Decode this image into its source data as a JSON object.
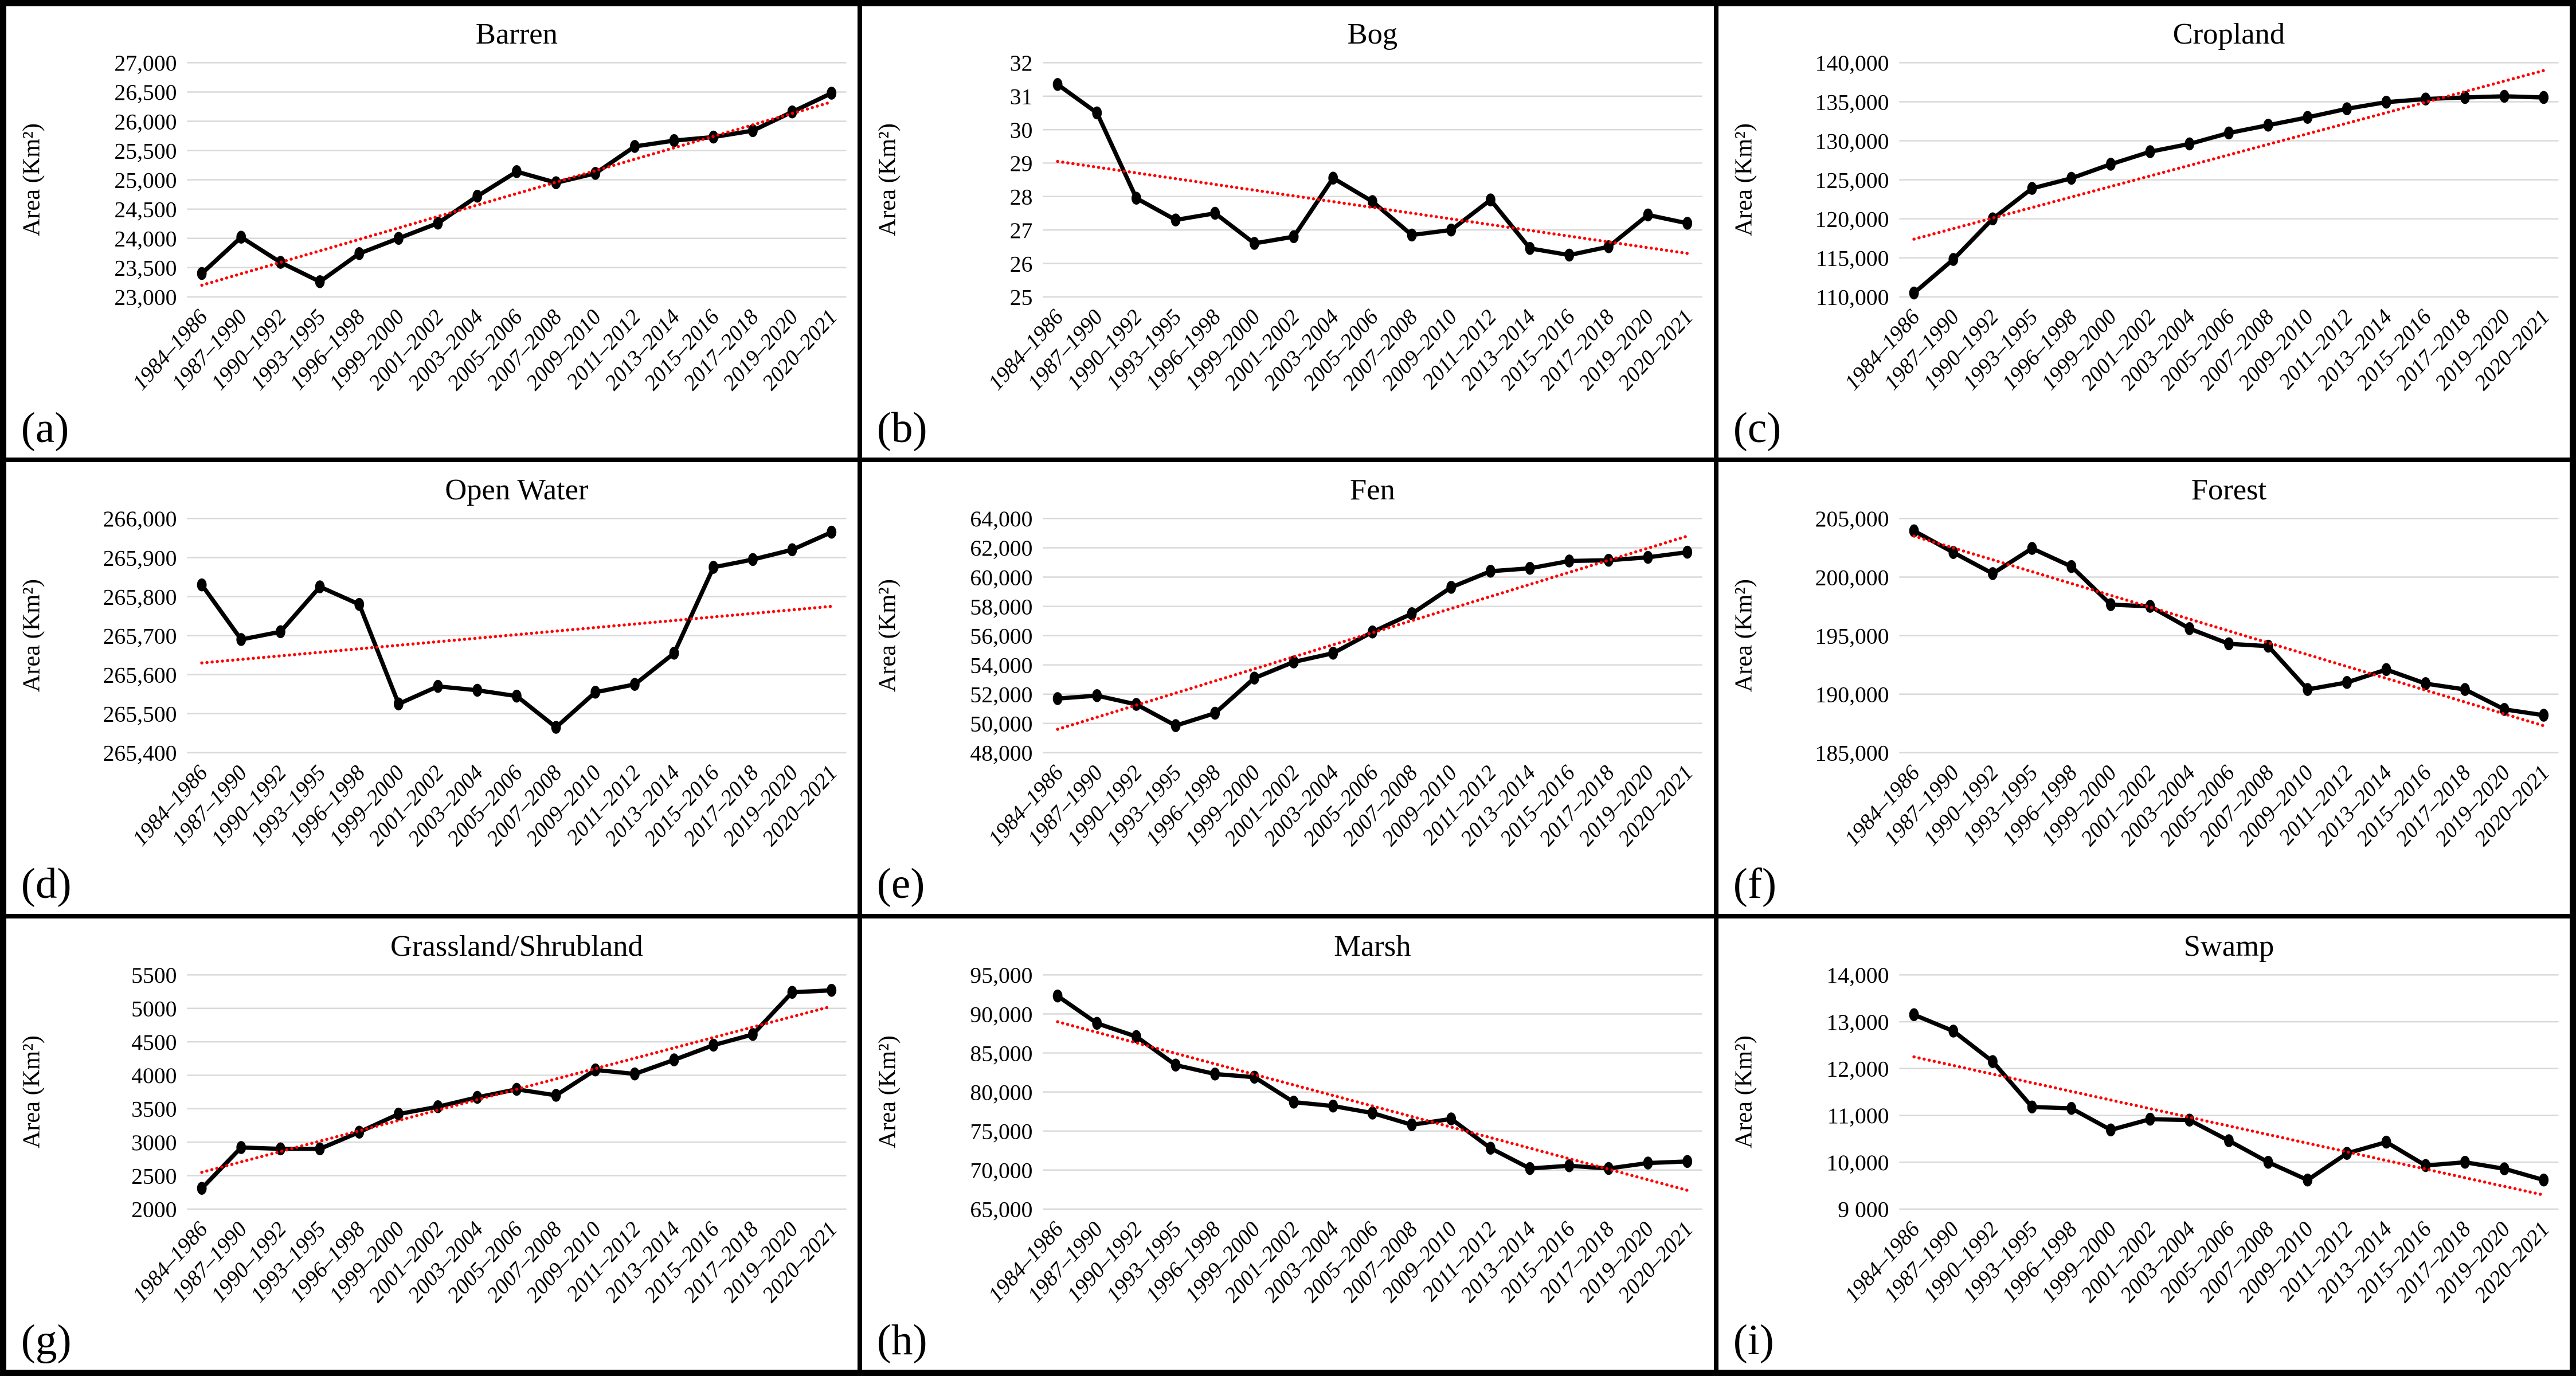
{
  "chart_data": {
    "type": "line",
    "xlabel": "",
    "series_color": "#000000",
    "trendline_color": "#FF0000",
    "trendline_style": "dotted",
    "gridline_color": "#D9D9D9",
    "marker": "ellipse",
    "legend": "none",
    "categories": [
      "1984–1986",
      "1987–1990",
      "1990–1992",
      "1993–1995",
      "1996–1998",
      "1999–2000",
      "2001–2002",
      "2003–2004",
      "2005–2006",
      "2007–2008",
      "2009–2010",
      "2011–2012",
      "2013–2014",
      "2015–2016",
      "2017–2018",
      "2019–2020",
      "2020–2021"
    ],
    "panels": [
      {
        "panel_label": "(a)",
        "title": "Barren",
        "ylabel": "Area (Km²)",
        "ylim": [
          23000,
          27000
        ],
        "ytick_step": 500,
        "ytick_labels": [
          "27,000",
          "26,500",
          "26,000",
          "25,500",
          "25,000",
          "24,500",
          "24,000",
          "23,500",
          "23,000"
        ],
        "values": [
          23400,
          24020,
          23590,
          23260,
          23740,
          24000,
          24260,
          24720,
          25140,
          24950,
          25110,
          25570,
          25670,
          25730,
          25840,
          26160,
          26480
        ],
        "trendline": {
          "start": 23200,
          "end": 26330
        }
      },
      {
        "panel_label": "(b)",
        "title": "Bog",
        "ylabel": "Area (Km²)",
        "ylim": [
          25,
          32
        ],
        "ytick_step": 1,
        "ytick_labels": [
          "32",
          "31",
          "30",
          "29",
          "28",
          "27",
          "26",
          "25"
        ],
        "values": [
          31.35,
          30.5,
          27.95,
          27.3,
          27.5,
          26.6,
          26.8,
          28.55,
          27.85,
          26.85,
          27.0,
          27.9,
          26.45,
          26.25,
          26.5,
          27.45,
          27.2
        ],
        "trendline": {
          "start": 29.05,
          "end": 26.3
        }
      },
      {
        "panel_label": "(c)",
        "title": "Cropland",
        "ylabel": "Area (Km²)",
        "ylim": [
          110000,
          140000
        ],
        "ytick_step": 5000,
        "ytick_labels": [
          "140,000",
          "135,000",
          "130,000",
          "125,000",
          "120,000",
          "115,000",
          "110,000"
        ],
        "values": [
          110500,
          114800,
          120000,
          123900,
          125200,
          127000,
          128600,
          129600,
          131000,
          132000,
          133000,
          134100,
          134950,
          135350,
          135550,
          135700,
          135550
        ],
        "trendline": {
          "start": 117400,
          "end": 139000
        }
      },
      {
        "panel_label": "(d)",
        "title": "Open Water",
        "ylabel": "Area (Km²)",
        "ylim": [
          265400,
          266000
        ],
        "ytick_step": 100,
        "ytick_labels": [
          "266,000",
          "265,900",
          "265,800",
          "265,700",
          "265,600",
          "265,500",
          "265,400"
        ],
        "values": [
          265830,
          265690,
          265710,
          265825,
          265780,
          265525,
          265570,
          265560,
          265545,
          265465,
          265555,
          265575,
          265655,
          265875,
          265895,
          265920,
          265965
        ],
        "trendline": {
          "start": 265630,
          "end": 265775
        }
      },
      {
        "panel_label": "(e)",
        "title": "Fen",
        "ylabel": "Area (Km²)",
        "ylim": [
          48000,
          64000
        ],
        "ytick_step": 2000,
        "ytick_labels": [
          "64,000",
          "62,000",
          "60,000",
          "58,000",
          "56,000",
          "54,000",
          "52,000",
          "50,000",
          "48,000"
        ],
        "values": [
          51700,
          51900,
          51300,
          49850,
          50700,
          53100,
          54200,
          54800,
          56250,
          57500,
          59300,
          60400,
          60600,
          61100,
          61150,
          61350,
          61700
        ],
        "trendline": {
          "start": 49600,
          "end": 62800
        }
      },
      {
        "panel_label": "(f)",
        "title": "Forest",
        "ylabel": "Area (Km²)",
        "ylim": [
          185000,
          205000
        ],
        "ytick_step": 5000,
        "ytick_labels": [
          "205,000",
          "200,000",
          "195,000",
          "190,000",
          "185,000"
        ],
        "values": [
          203950,
          202100,
          200300,
          202450,
          200900,
          197650,
          197500,
          195600,
          194300,
          194100,
          190400,
          191000,
          192100,
          190900,
          190400,
          188700,
          188200
        ],
        "trendline": {
          "start": 203500,
          "end": 187300
        }
      },
      {
        "panel_label": "(g)",
        "title": "Grassland/Shrubland",
        "ylabel": "Area (Km²)",
        "ylim": [
          2000,
          5500
        ],
        "ytick_step": 500,
        "ytick_labels": [
          "5500",
          "5000",
          "4500",
          "4000",
          "3500",
          "3000",
          "2500",
          "2000"
        ],
        "values": [
          2310,
          2920,
          2900,
          2900,
          3150,
          3420,
          3530,
          3670,
          3790,
          3700,
          4080,
          4020,
          4230,
          4450,
          4610,
          5240,
          5270
        ],
        "trendline": {
          "start": 2550,
          "end": 5030
        }
      },
      {
        "panel_label": "(h)",
        "title": "Marsh",
        "ylabel": "Area (Km²)",
        "ylim": [
          65000,
          95000
        ],
        "ytick_step": 5000,
        "ytick_labels": [
          "95,000",
          "90,000",
          "85,000",
          "80,000",
          "75,000",
          "70,000",
          "65,000"
        ],
        "values": [
          92300,
          88800,
          87100,
          83450,
          82300,
          81900,
          78700,
          78200,
          77300,
          75800,
          76550,
          72800,
          70200,
          70550,
          70200,
          70900,
          71100
        ],
        "trendline": {
          "start": 89000,
          "end": 67400
        }
      },
      {
        "panel_label": "(i)",
        "title": "Swamp",
        "ylabel": "Area (Km²)",
        "ylim": [
          9000,
          14000
        ],
        "ytick_step": 1000,
        "ytick_labels": [
          "14,000",
          "13,000",
          "12,000",
          "11,000",
          "10,000",
          "9 000"
        ],
        "values": [
          13150,
          12800,
          12150,
          11180,
          11150,
          10690,
          10920,
          10900,
          10460,
          10000,
          9620,
          10190,
          10430,
          9930,
          10000,
          9860,
          9620
        ],
        "trendline": {
          "start": 12250,
          "end": 9300
        }
      }
    ]
  }
}
